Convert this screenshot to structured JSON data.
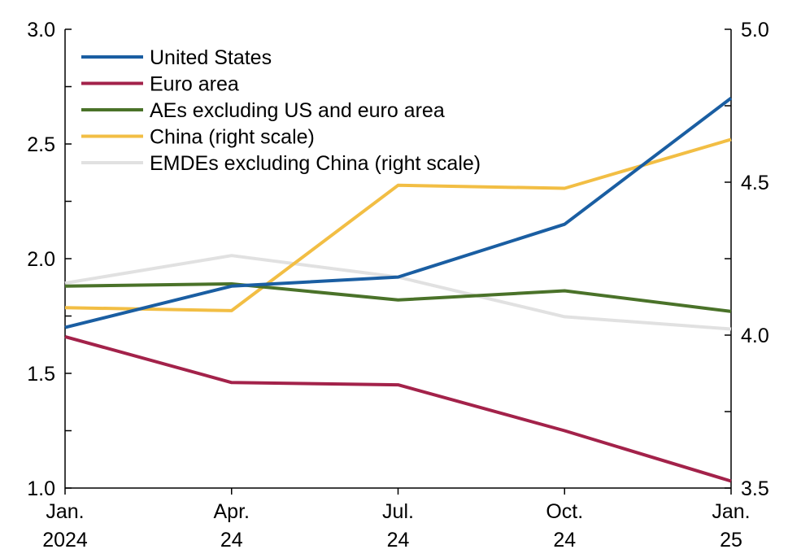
{
  "chart_data": {
    "type": "line",
    "title": "",
    "xlabel": "",
    "ylabel": "",
    "x_categories": [
      {
        "line1": "Jan.",
        "line2": "2024"
      },
      {
        "line1": "Apr.",
        "line2": "24"
      },
      {
        "line1": "Jul.",
        "line2": "24"
      },
      {
        "line1": "Oct.",
        "line2": "24"
      },
      {
        "line1": "Jan.",
        "line2": "25"
      }
    ],
    "ylim_left": [
      1.0,
      3.0
    ],
    "ylim_right": [
      3.5,
      5.0
    ],
    "left_ticks": [
      "1.0",
      "1.5",
      "2.0",
      "2.5",
      "3.0"
    ],
    "right_ticks": [
      "3.5",
      "4.0",
      "4.5",
      "5.0"
    ],
    "grid": false,
    "legend_position": "top-left",
    "series": [
      {
        "name": "United States",
        "axis": "left",
        "color": "#1a5ea2",
        "values": [
          1.7,
          1.88,
          1.92,
          2.15,
          2.7
        ]
      },
      {
        "name": "Euro area",
        "axis": "left",
        "color": "#a3224a",
        "values": [
          1.66,
          1.46,
          1.45,
          1.25,
          1.03
        ]
      },
      {
        "name": "AEs excluding US and euro area",
        "axis": "left",
        "color": "#4a7229",
        "values": [
          1.88,
          1.89,
          1.82,
          1.86,
          1.77
        ]
      },
      {
        "name": "China (right scale)",
        "axis": "right",
        "color": "#f2be44",
        "values": [
          4.09,
          4.08,
          4.49,
          4.48,
          4.64
        ]
      },
      {
        "name": "EMDEs excluding China (right scale)",
        "axis": "right",
        "color": "#e1e1e1",
        "values": [
          4.17,
          4.26,
          4.19,
          4.06,
          4.02
        ]
      }
    ]
  }
}
